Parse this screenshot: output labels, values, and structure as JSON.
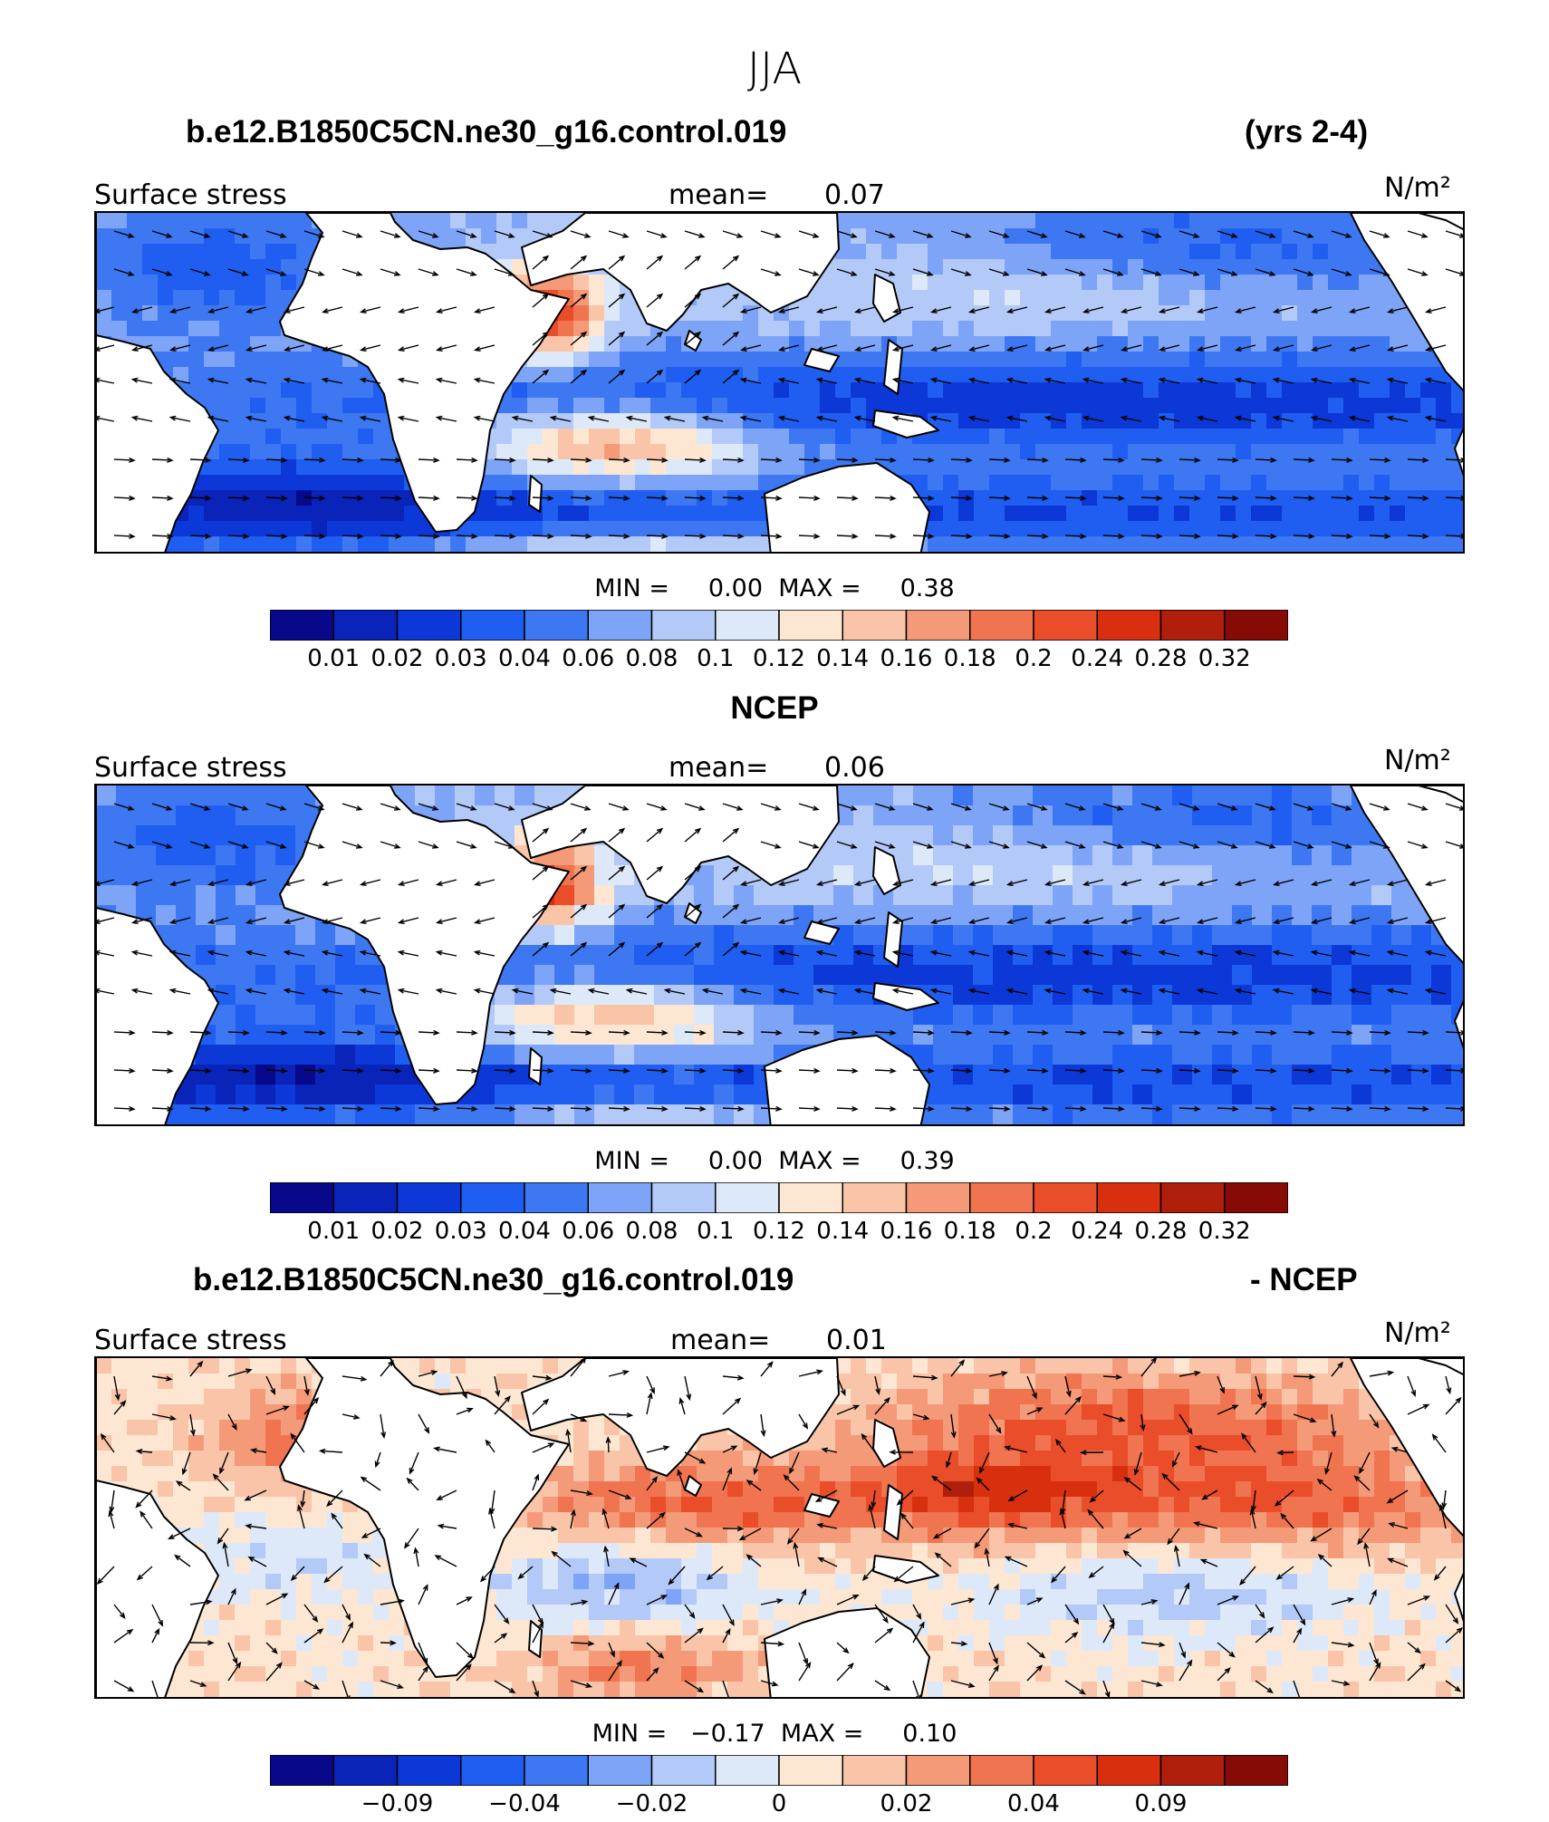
{
  "figure": {
    "title": "JJA",
    "units_label": "N/m²"
  },
  "colors": {
    "blues": [
      "#08088a",
      "#0a23b8",
      "#0b38d6",
      "#1f5ef0",
      "#3d78f2",
      "#7ea4f7",
      "#b3c9f8",
      "#dde8f8"
    ],
    "reds": [
      "#fde7d2",
      "#f9c4a8",
      "#f59a78",
      "#f0744f",
      "#ea4d2a",
      "#d8300f",
      "#b01f0c",
      "#860a06"
    ],
    "land": "#ffffff"
  },
  "chart_data": [
    {
      "type": "heatmap",
      "name": "model",
      "title_left": "b.e12.B1850C5CN.ne30_g16.control.019",
      "title_right": "(yrs 2-4)",
      "variable_label": "Surface stress",
      "mean_label": "mean=",
      "mean_value": "0.07",
      "units": "N/m²",
      "min_label": "MIN =",
      "min_value": "0.00",
      "max_label": "MAX =",
      "max_value": "0.38",
      "colorbar_ticks": [
        "0.01",
        "0.02",
        "0.03",
        "0.04",
        "0.06",
        "0.08",
        "0.1",
        "0.12",
        "0.14",
        "0.16",
        "0.18",
        "0.2",
        "0.24",
        "0.28",
        "0.32"
      ],
      "n_colors": 16,
      "field_range": [
        0,
        0.32
      ]
    },
    {
      "type": "heatmap",
      "name": "ncep",
      "title_left": "NCEP",
      "title_right": "",
      "variable_label": "Surface stress",
      "mean_label": "mean=",
      "mean_value": "0.06",
      "units": "N/m²",
      "min_label": "MIN =",
      "min_value": "0.00",
      "max_label": "MAX =",
      "max_value": "0.39",
      "colorbar_ticks": [
        "0.01",
        "0.02",
        "0.03",
        "0.04",
        "0.06",
        "0.08",
        "0.1",
        "0.12",
        "0.14",
        "0.16",
        "0.18",
        "0.2",
        "0.24",
        "0.28",
        "0.32"
      ],
      "n_colors": 16,
      "field_range": [
        0,
        0.32
      ]
    },
    {
      "type": "heatmap",
      "name": "difference",
      "title_left": "b.e12.B1850C5CN.ne30_g16.control.019",
      "title_right": "- NCEP",
      "variable_label": "Surface stress",
      "mean_label": "mean=",
      "mean_value": "0.01",
      "units": "N/m²",
      "min_label": "MIN =",
      "min_value": "−0.17",
      "max_label": "MAX =",
      "max_value": "0.10",
      "colorbar_ticks": [
        "−0.09",
        "−0.04",
        "−0.02",
        "0",
        "0.02",
        "0.04",
        "0.09"
      ],
      "colorbar_tick_edges": [
        2,
        4,
        6,
        8,
        10,
        12,
        14
      ],
      "n_colors": 16,
      "field_range": [
        -0.12,
        0.12
      ]
    }
  ]
}
